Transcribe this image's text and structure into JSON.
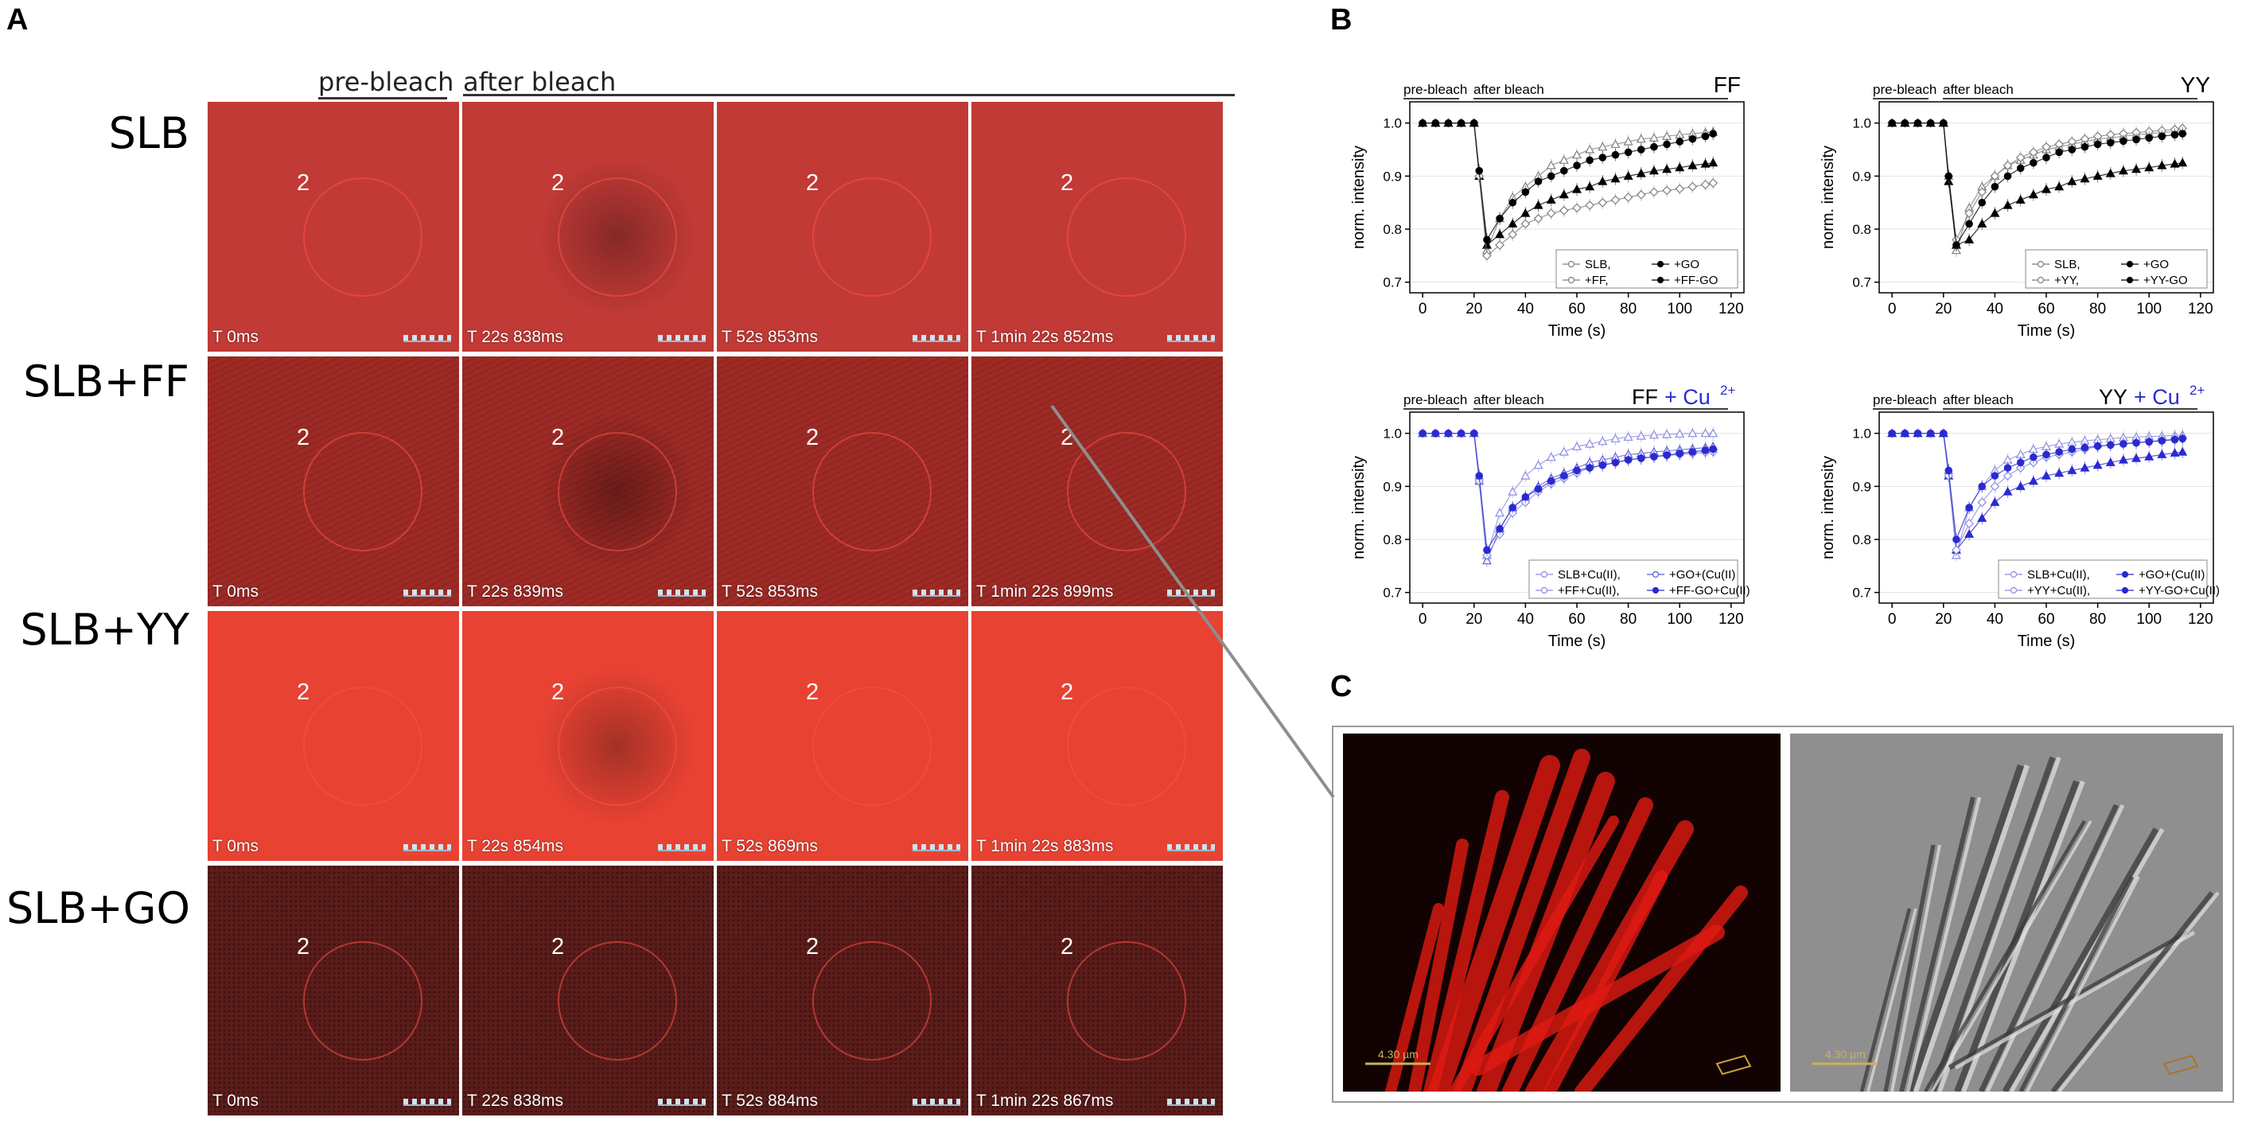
{
  "panel_letters": {
    "a": "A",
    "b": "B",
    "c": "C"
  },
  "panel_a": {
    "header_pre": "pre-bleach",
    "header_after": "after bleach",
    "roi_label": "2",
    "rows": [
      {
        "label": "SLB",
        "times": [
          "T 0ms",
          "T 22s 838ms",
          "T 52s 853ms",
          "T 1min 22s 852ms"
        ]
      },
      {
        "label": "SLB+FF",
        "times": [
          "T 0ms",
          "T 22s 839ms",
          "T 52s 853ms",
          "T 1min 22s 899ms"
        ]
      },
      {
        "label": "SLB+YY",
        "times": [
          "T 0ms",
          "T 22s 854ms",
          "T 52s 869ms",
          "T 1min 22s 883ms"
        ]
      },
      {
        "label": "SLB+GO",
        "times": [
          "T 0ms",
          "T 22s 838ms",
          "T 52s 884ms",
          "T 1min 22s 867ms"
        ]
      }
    ]
  },
  "panel_b": {
    "pre_label": "pre-bleach",
    "after_label": "after bleach",
    "ylabel": "norm. intensity",
    "xlabel": "Time (s)",
    "x_ticks": [
      "0",
      "20",
      "40",
      "60",
      "80",
      "100",
      "120"
    ],
    "y_ticks": [
      "0.7",
      "0.8",
      "0.9",
      "1.0"
    ],
    "cu_label": "+ Cu",
    "cu_sup": "2+",
    "cu_color": "#2a2ad0",
    "plots": [
      {
        "title": "FF",
        "title_cu": false,
        "legend": [
          "SLB,",
          "+GO",
          "+FF,",
          "+FF-GO"
        ]
      },
      {
        "title": "YY",
        "title_cu": false,
        "legend": [
          "SLB,",
          "+GO",
          "+YY,",
          "+YY-GO"
        ]
      },
      {
        "title": "FF",
        "title_cu": true,
        "legend": [
          "SLB+Cu(II),",
          "+GO+(Cu(II)",
          "+FF+Cu(II),",
          "+FF-GO+Cu(II)"
        ]
      },
      {
        "title": "YY",
        "title_cu": true,
        "legend": [
          "SLB+Cu(II),",
          "+GO+(Cu(II)",
          "+YY+Cu(II),",
          "+YY-GO+Cu(II)"
        ]
      }
    ]
  },
  "chart_data": [
    {
      "type": "scatter",
      "title": "FF",
      "xlabel": "Time (s)",
      "ylabel": "norm. intensity",
      "xlim": [
        -5,
        125
      ],
      "ylim": [
        0.68,
        1.04
      ],
      "x": [
        0,
        5,
        10,
        15,
        20,
        22,
        25,
        30,
        35,
        40,
        45,
        50,
        55,
        60,
        65,
        70,
        75,
        80,
        85,
        90,
        95,
        100,
        105,
        110,
        113
      ],
      "series": [
        {
          "name": "SLB,",
          "marker": "open-triangle",
          "color": "#7f7f7f",
          "values": [
            1.0,
            1.0,
            1.0,
            1.0,
            1.0,
            0.9,
            0.76,
            0.82,
            0.86,
            0.88,
            0.9,
            0.92,
            0.93,
            0.94,
            0.95,
            0.955,
            0.96,
            0.965,
            0.97,
            0.972,
            0.975,
            0.978,
            0.98,
            0.982,
            0.983
          ]
        },
        {
          "name": "+GO",
          "marker": "filled-triangle",
          "color": "#000000",
          "values": [
            1.0,
            1.0,
            1.0,
            1.0,
            1.0,
            0.9,
            0.77,
            0.79,
            0.81,
            0.83,
            0.845,
            0.855,
            0.865,
            0.875,
            0.88,
            0.89,
            0.895,
            0.9,
            0.905,
            0.91,
            0.913,
            0.916,
            0.92,
            0.923,
            0.925
          ]
        },
        {
          "name": "+FF,",
          "marker": "open-diamond",
          "color": "#7f7f7f",
          "values": [
            1.0,
            1.0,
            1.0,
            1.0,
            1.0,
            0.9,
            0.75,
            0.77,
            0.79,
            0.81,
            0.82,
            0.83,
            0.835,
            0.84,
            0.845,
            0.85,
            0.855,
            0.86,
            0.865,
            0.87,
            0.873,
            0.876,
            0.88,
            0.884,
            0.887
          ]
        },
        {
          "name": "+FF-GO",
          "marker": "filled-circle",
          "color": "#000000",
          "values": [
            1.0,
            1.0,
            1.0,
            1.0,
            1.0,
            0.91,
            0.78,
            0.82,
            0.85,
            0.87,
            0.89,
            0.9,
            0.91,
            0.92,
            0.93,
            0.935,
            0.94,
            0.945,
            0.95,
            0.955,
            0.96,
            0.965,
            0.97,
            0.975,
            0.98
          ]
        }
      ]
    },
    {
      "type": "scatter",
      "title": "YY",
      "xlabel": "Time (s)",
      "ylabel": "norm. intensity",
      "xlim": [
        -5,
        125
      ],
      "ylim": [
        0.68,
        1.04
      ],
      "x": [
        0,
        5,
        10,
        15,
        20,
        22,
        25,
        30,
        35,
        40,
        45,
        50,
        55,
        60,
        65,
        70,
        75,
        80,
        85,
        90,
        95,
        100,
        105,
        110,
        113
      ],
      "series": [
        {
          "name": "SLB,",
          "marker": "open-triangle",
          "color": "#7f7f7f",
          "values": [
            1.0,
            1.0,
            1.0,
            1.0,
            1.0,
            0.9,
            0.76,
            0.84,
            0.88,
            0.9,
            0.92,
            0.93,
            0.94,
            0.95,
            0.955,
            0.96,
            0.965,
            0.97,
            0.972,
            0.975,
            0.978,
            0.98,
            0.982,
            0.984,
            0.985
          ]
        },
        {
          "name": "+GO",
          "marker": "filled-triangle",
          "color": "#000000",
          "values": [
            1.0,
            1.0,
            1.0,
            1.0,
            1.0,
            0.89,
            0.77,
            0.78,
            0.81,
            0.83,
            0.845,
            0.855,
            0.865,
            0.875,
            0.88,
            0.89,
            0.895,
            0.9,
            0.905,
            0.91,
            0.913,
            0.916,
            0.92,
            0.923,
            0.925
          ]
        },
        {
          "name": "+YY,",
          "marker": "open-diamond",
          "color": "#7f7f7f",
          "values": [
            1.0,
            1.0,
            1.0,
            1.0,
            1.0,
            0.9,
            0.78,
            0.83,
            0.87,
            0.9,
            0.92,
            0.935,
            0.945,
            0.955,
            0.96,
            0.965,
            0.97,
            0.975,
            0.978,
            0.98,
            0.982,
            0.984,
            0.986,
            0.988,
            0.99
          ]
        },
        {
          "name": "+YY-GO",
          "marker": "filled-circle",
          "color": "#000000",
          "values": [
            1.0,
            1.0,
            1.0,
            1.0,
            1.0,
            0.9,
            0.77,
            0.81,
            0.85,
            0.88,
            0.9,
            0.915,
            0.925,
            0.935,
            0.945,
            0.95,
            0.955,
            0.96,
            0.963,
            0.966,
            0.969,
            0.972,
            0.975,
            0.978,
            0.98
          ]
        }
      ]
    },
    {
      "type": "scatter",
      "title": "FF + Cu2+",
      "xlabel": "Time (s)",
      "ylabel": "norm. intensity",
      "xlim": [
        -5,
        125
      ],
      "ylim": [
        0.68,
        1.04
      ],
      "x": [
        0,
        5,
        10,
        15,
        20,
        22,
        25,
        30,
        35,
        40,
        45,
        50,
        55,
        60,
        65,
        70,
        75,
        80,
        85,
        90,
        95,
        100,
        105,
        110,
        113
      ],
      "series": [
        {
          "name": "SLB+Cu(II),",
          "marker": "open-triangle",
          "color": "#8a8ae0",
          "values": [
            1.0,
            1.0,
            1.0,
            1.0,
            1.0,
            0.92,
            0.77,
            0.85,
            0.89,
            0.92,
            0.94,
            0.955,
            0.965,
            0.975,
            0.98,
            0.985,
            0.99,
            0.993,
            0.995,
            0.997,
            0.998,
            0.999,
            1.0,
            1.0,
            1.0
          ]
        },
        {
          "name": "+GO+(Cu(II)",
          "marker": "open-triangle",
          "color": "#5a5ad8",
          "values": [
            1.0,
            1.0,
            1.0,
            1.0,
            1.0,
            0.91,
            0.76,
            0.82,
            0.86,
            0.88,
            0.9,
            0.915,
            0.925,
            0.935,
            0.945,
            0.95,
            0.955,
            0.96,
            0.962,
            0.965,
            0.967,
            0.969,
            0.971,
            0.973,
            0.975
          ]
        },
        {
          "name": "+FF+Cu(II),",
          "marker": "open-diamond",
          "color": "#8a8ae0",
          "values": [
            1.0,
            1.0,
            1.0,
            1.0,
            1.0,
            0.91,
            0.77,
            0.81,
            0.85,
            0.87,
            0.89,
            0.905,
            0.915,
            0.925,
            0.935,
            0.94,
            0.945,
            0.95,
            0.953,
            0.956,
            0.958,
            0.96,
            0.962,
            0.964,
            0.965
          ]
        },
        {
          "name": "+FF-GO+Cu(II)",
          "marker": "filled-circle",
          "color": "#2a2ad0",
          "values": [
            1.0,
            1.0,
            1.0,
            1.0,
            1.0,
            0.92,
            0.78,
            0.82,
            0.86,
            0.88,
            0.895,
            0.91,
            0.92,
            0.93,
            0.935,
            0.94,
            0.945,
            0.95,
            0.953,
            0.956,
            0.959,
            0.962,
            0.965,
            0.968,
            0.97
          ]
        }
      ]
    },
    {
      "type": "scatter",
      "title": "YY + Cu2+",
      "xlabel": "Time (s)",
      "ylabel": "norm. intensity",
      "xlim": [
        -5,
        125
      ],
      "ylim": [
        0.68,
        1.04
      ],
      "x": [
        0,
        5,
        10,
        15,
        20,
        22,
        25,
        30,
        35,
        40,
        45,
        50,
        55,
        60,
        65,
        70,
        75,
        80,
        85,
        90,
        95,
        100,
        105,
        110,
        113
      ],
      "series": [
        {
          "name": "SLB+Cu(II),",
          "marker": "open-triangle",
          "color": "#8a8ae0",
          "values": [
            1.0,
            1.0,
            1.0,
            1.0,
            1.0,
            0.93,
            0.77,
            0.86,
            0.9,
            0.93,
            0.95,
            0.96,
            0.97,
            0.975,
            0.98,
            0.983,
            0.986,
            0.988,
            0.99,
            0.992,
            0.993,
            0.994,
            0.995,
            0.996,
            0.997
          ]
        },
        {
          "name": "+GO+(Cu(II)",
          "marker": "filled-triangle",
          "color": "#2a2ad0",
          "values": [
            1.0,
            1.0,
            1.0,
            1.0,
            1.0,
            0.92,
            0.78,
            0.81,
            0.84,
            0.87,
            0.89,
            0.9,
            0.91,
            0.92,
            0.925,
            0.93,
            0.935,
            0.94,
            0.945,
            0.95,
            0.953,
            0.956,
            0.96,
            0.963,
            0.965
          ]
        },
        {
          "name": "+YY+Cu(II),",
          "marker": "open-diamond",
          "color": "#8a8ae0",
          "values": [
            1.0,
            1.0,
            1.0,
            1.0,
            1.0,
            0.92,
            0.78,
            0.83,
            0.87,
            0.9,
            0.92,
            0.935,
            0.945,
            0.955,
            0.96,
            0.965,
            0.97,
            0.975,
            0.978,
            0.981,
            0.983,
            0.985,
            0.987,
            0.989,
            0.99
          ]
        },
        {
          "name": "+YY-GO+Cu(II)",
          "marker": "filled-circle",
          "color": "#2a2ad0",
          "values": [
            1.0,
            1.0,
            1.0,
            1.0,
            1.0,
            0.93,
            0.8,
            0.86,
            0.9,
            0.92,
            0.935,
            0.945,
            0.955,
            0.96,
            0.965,
            0.97,
            0.973,
            0.976,
            0.978,
            0.98,
            0.982,
            0.984,
            0.986,
            0.988,
            0.99
          ]
        }
      ]
    }
  ],
  "panel_c": {
    "scale_label": "4.30 µm",
    "fluor_color": "#e11a12",
    "bf_color": "#8a8a8a"
  }
}
